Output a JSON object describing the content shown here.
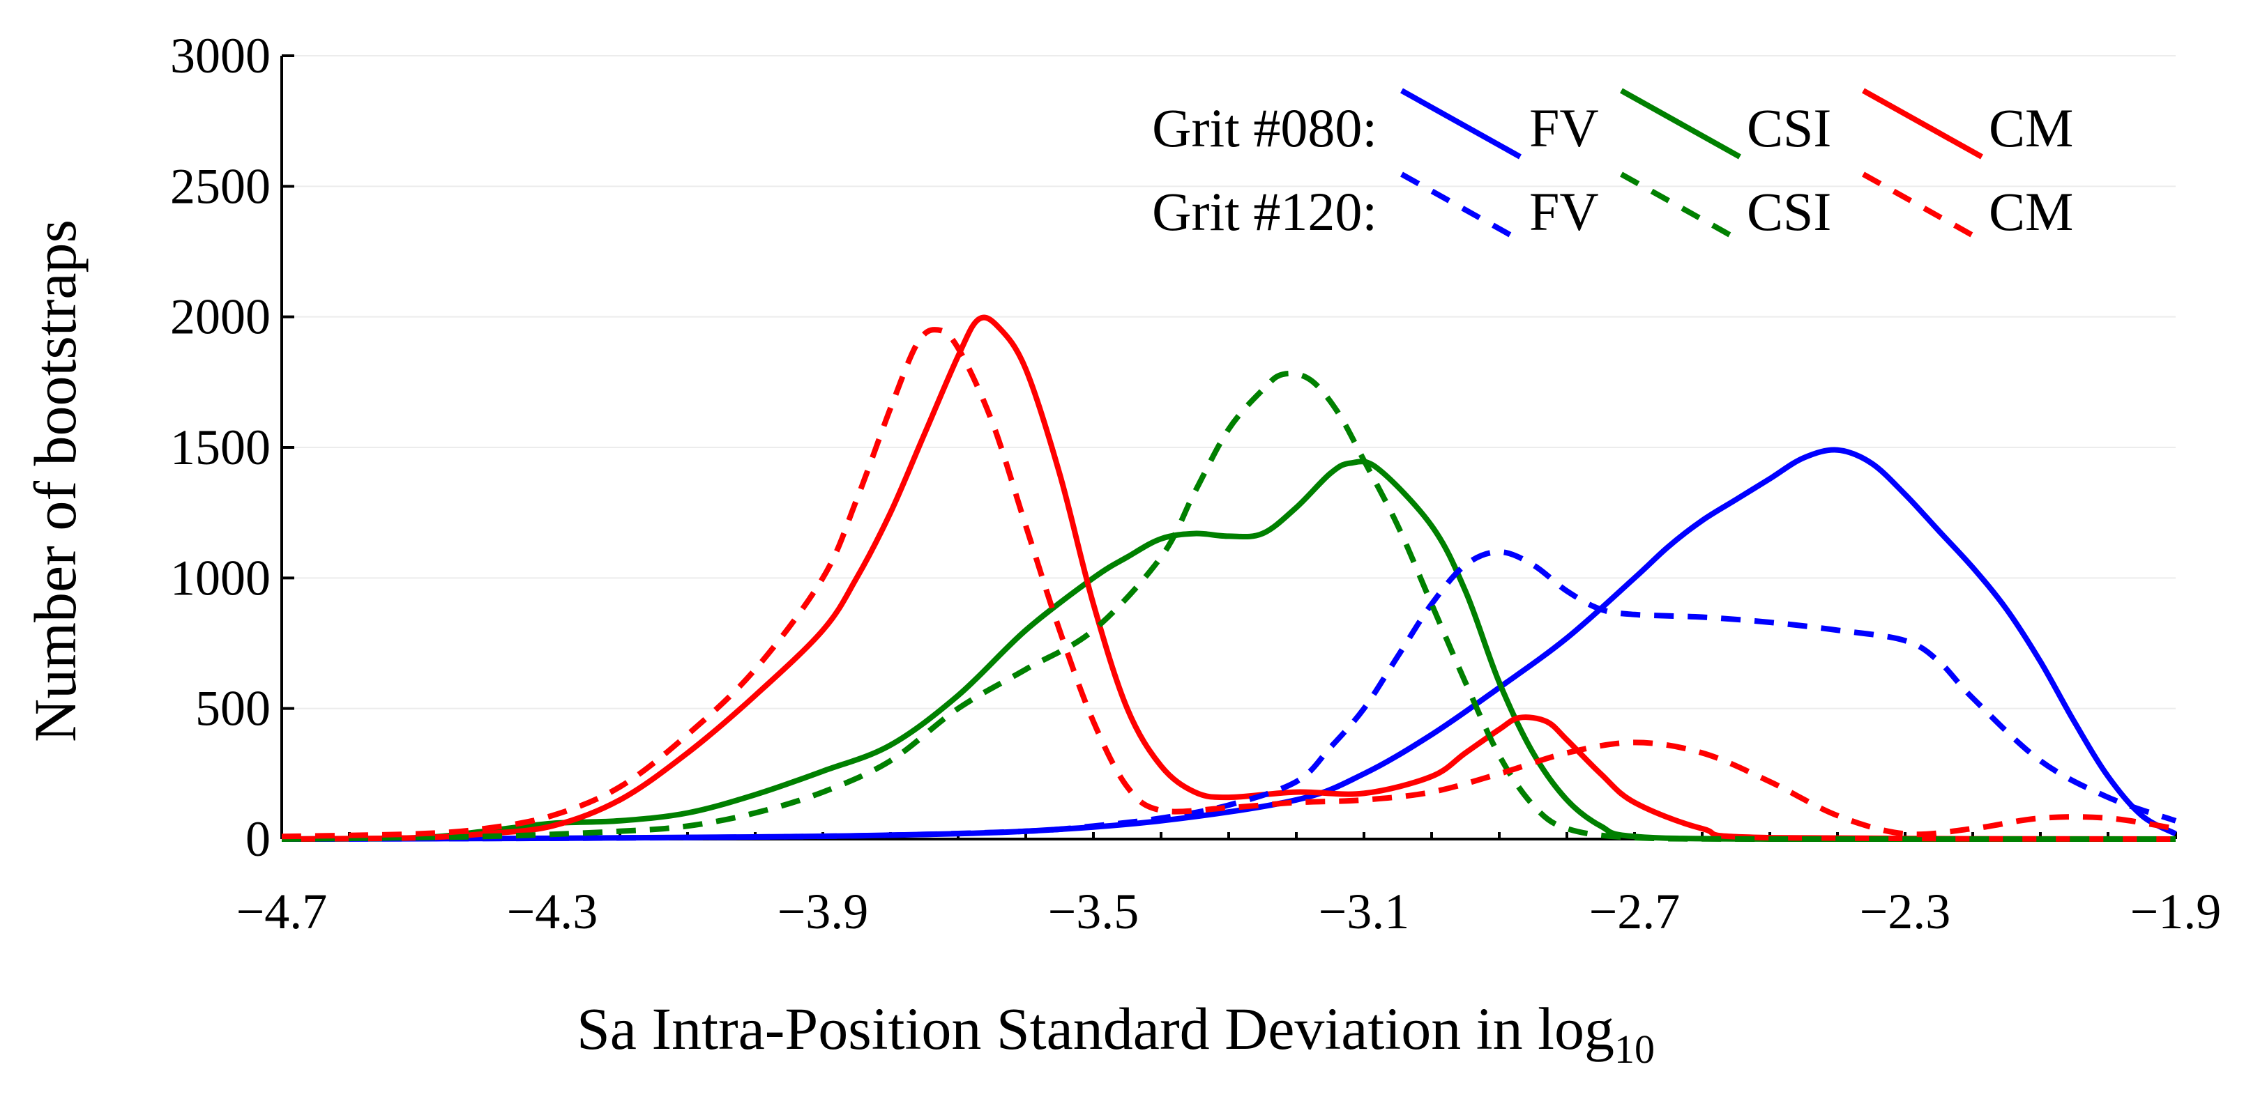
{
  "chart_data": {
    "type": "line",
    "title": "",
    "xlabel": "Sa Intra-Position Standard Deviation in log",
    "xlabel_subscript": "10",
    "ylabel": "Number of bootstraps",
    "xlim": [
      -4.7,
      -1.9
    ],
    "ylim": [
      0,
      3000
    ],
    "x_ticks": [
      -4.7,
      -4.3,
      -3.9,
      -3.5,
      -3.1,
      -2.7,
      -2.3,
      -1.9
    ],
    "x_tick_labels": [
      "−4.7",
      "−4.3",
      "−3.9",
      "−3.5",
      "−3.1",
      "−2.7",
      "−2.3",
      "−1.9"
    ],
    "y_ticks": [
      0,
      500,
      1000,
      1500,
      2000,
      2500,
      3000
    ],
    "y_tick_labels": [
      "0",
      "500",
      "1000",
      "1500",
      "2000",
      "2500",
      "3000"
    ],
    "grid": "horizontal",
    "legend_position": "top-right",
    "legend": {
      "row_labels": [
        "Grit #080:",
        "Grit #120:"
      ],
      "entries": [
        "FV",
        "CSI",
        "CM"
      ]
    },
    "series": [
      {
        "name": "FV",
        "grit": "#080",
        "color": "#0000ff",
        "dashed": false,
        "points": [
          [
            -4.7,
            0
          ],
          [
            -4.3,
            3
          ],
          [
            -4.0,
            8
          ],
          [
            -3.8,
            15
          ],
          [
            -3.6,
            30
          ],
          [
            -3.4,
            70
          ],
          [
            -3.2,
            150
          ],
          [
            -3.1,
            250
          ],
          [
            -3.0,
            400
          ],
          [
            -2.9,
            580
          ],
          [
            -2.8,
            770
          ],
          [
            -2.7,
            1000
          ],
          [
            -2.65,
            1120
          ],
          [
            -2.6,
            1220
          ],
          [
            -2.55,
            1300
          ],
          [
            -2.5,
            1380
          ],
          [
            -2.45,
            1460
          ],
          [
            -2.4,
            1490
          ],
          [
            -2.35,
            1440
          ],
          [
            -2.3,
            1320
          ],
          [
            -2.25,
            1180
          ],
          [
            -2.2,
            1040
          ],
          [
            -2.15,
            880
          ],
          [
            -2.1,
            680
          ],
          [
            -2.05,
            450
          ],
          [
            -2.0,
            240
          ],
          [
            -1.95,
            90
          ],
          [
            -1.9,
            20
          ]
        ]
      },
      {
        "name": "CSI",
        "grit": "#080",
        "color": "#008000",
        "dashed": false,
        "points": [
          [
            -4.7,
            0
          ],
          [
            -4.5,
            5
          ],
          [
            -4.4,
            30
          ],
          [
            -4.3,
            60
          ],
          [
            -4.2,
            70
          ],
          [
            -4.1,
            100
          ],
          [
            -4.0,
            170
          ],
          [
            -3.9,
            260
          ],
          [
            -3.8,
            360
          ],
          [
            -3.7,
            550
          ],
          [
            -3.6,
            800
          ],
          [
            -3.5,
            1000
          ],
          [
            -3.45,
            1080
          ],
          [
            -3.4,
            1150
          ],
          [
            -3.35,
            1170
          ],
          [
            -3.3,
            1160
          ],
          [
            -3.25,
            1170
          ],
          [
            -3.2,
            1270
          ],
          [
            -3.15,
            1400
          ],
          [
            -3.12,
            1440
          ],
          [
            -3.08,
            1420
          ],
          [
            -3.0,
            1200
          ],
          [
            -2.95,
            950
          ],
          [
            -2.9,
            600
          ],
          [
            -2.85,
            330
          ],
          [
            -2.8,
            150
          ],
          [
            -2.75,
            50
          ],
          [
            -2.7,
            10
          ],
          [
            -2.5,
            0
          ],
          [
            -1.9,
            0
          ]
        ]
      },
      {
        "name": "CM",
        "grit": "#080",
        "color": "#ff0000",
        "dashed": false,
        "points": [
          [
            -4.7,
            0
          ],
          [
            -4.5,
            5
          ],
          [
            -4.4,
            20
          ],
          [
            -4.3,
            50
          ],
          [
            -4.2,
            150
          ],
          [
            -4.1,
            330
          ],
          [
            -4.0,
            550
          ],
          [
            -3.9,
            800
          ],
          [
            -3.85,
            1000
          ],
          [
            -3.8,
            1250
          ],
          [
            -3.75,
            1550
          ],
          [
            -3.7,
            1850
          ],
          [
            -3.67,
            1990
          ],
          [
            -3.64,
            1960
          ],
          [
            -3.6,
            1800
          ],
          [
            -3.55,
            1400
          ],
          [
            -3.5,
            900
          ],
          [
            -3.45,
            500
          ],
          [
            -3.4,
            280
          ],
          [
            -3.35,
            180
          ],
          [
            -3.3,
            160
          ],
          [
            -3.2,
            180
          ],
          [
            -3.1,
            175
          ],
          [
            -3.0,
            240
          ],
          [
            -2.95,
            330
          ],
          [
            -2.9,
            420
          ],
          [
            -2.87,
            465
          ],
          [
            -2.83,
            450
          ],
          [
            -2.8,
            380
          ],
          [
            -2.75,
            250
          ],
          [
            -2.7,
            140
          ],
          [
            -2.6,
            40
          ],
          [
            -2.5,
            5
          ],
          [
            -1.9,
            0
          ]
        ]
      },
      {
        "name": "FV",
        "grit": "#120",
        "color": "#0000ff",
        "dashed": true,
        "points": [
          [
            -4.7,
            0
          ],
          [
            -4.3,
            3
          ],
          [
            -4.0,
            8
          ],
          [
            -3.8,
            15
          ],
          [
            -3.6,
            30
          ],
          [
            -3.5,
            50
          ],
          [
            -3.4,
            80
          ],
          [
            -3.3,
            130
          ],
          [
            -3.2,
            220
          ],
          [
            -3.15,
            350
          ],
          [
            -3.1,
            500
          ],
          [
            -3.05,
            700
          ],
          [
            -3.0,
            900
          ],
          [
            -2.95,
            1050
          ],
          [
            -2.9,
            1100
          ],
          [
            -2.85,
            1050
          ],
          [
            -2.8,
            950
          ],
          [
            -2.75,
            880
          ],
          [
            -2.7,
            860
          ],
          [
            -2.6,
            850
          ],
          [
            -2.5,
            830
          ],
          [
            -2.4,
            800
          ],
          [
            -2.3,
            760
          ],
          [
            -2.25,
            680
          ],
          [
            -2.2,
            540
          ],
          [
            -2.1,
            300
          ],
          [
            -2.0,
            160
          ],
          [
            -1.9,
            70
          ]
        ]
      },
      {
        "name": "CSI",
        "grit": "#120",
        "color": "#008000",
        "dashed": true,
        "points": [
          [
            -4.7,
            0
          ],
          [
            -4.4,
            10
          ],
          [
            -4.2,
            30
          ],
          [
            -4.1,
            50
          ],
          [
            -4.0,
            100
          ],
          [
            -3.9,
            180
          ],
          [
            -3.8,
            300
          ],
          [
            -3.7,
            500
          ],
          [
            -3.6,
            650
          ],
          [
            -3.5,
            800
          ],
          [
            -3.4,
            1080
          ],
          [
            -3.35,
            1330
          ],
          [
            -3.3,
            1570
          ],
          [
            -3.25,
            1720
          ],
          [
            -3.22,
            1780
          ],
          [
            -3.18,
            1760
          ],
          [
            -3.14,
            1640
          ],
          [
            -3.1,
            1450
          ],
          [
            -3.05,
            1200
          ],
          [
            -3.0,
            900
          ],
          [
            -2.95,
            600
          ],
          [
            -2.9,
            320
          ],
          [
            -2.85,
            130
          ],
          [
            -2.8,
            40
          ],
          [
            -2.7,
            5
          ],
          [
            -2.5,
            0
          ],
          [
            -1.9,
            0
          ]
        ]
      },
      {
        "name": "CM",
        "grit": "#120",
        "color": "#ff0000",
        "dashed": true,
        "points": [
          [
            -4.7,
            10
          ],
          [
            -4.5,
            20
          ],
          [
            -4.4,
            40
          ],
          [
            -4.3,
            90
          ],
          [
            -4.2,
            200
          ],
          [
            -4.1,
            400
          ],
          [
            -4.0,
            650
          ],
          [
            -3.9,
            1000
          ],
          [
            -3.85,
            1300
          ],
          [
            -3.8,
            1650
          ],
          [
            -3.76,
            1900
          ],
          [
            -3.73,
            1950
          ],
          [
            -3.7,
            1880
          ],
          [
            -3.65,
            1600
          ],
          [
            -3.6,
            1200
          ],
          [
            -3.55,
            800
          ],
          [
            -3.5,
            450
          ],
          [
            -3.45,
            200
          ],
          [
            -3.4,
            110
          ],
          [
            -3.3,
            120
          ],
          [
            -3.2,
            140
          ],
          [
            -3.1,
            150
          ],
          [
            -3.0,
            180
          ],
          [
            -2.9,
            250
          ],
          [
            -2.8,
            330
          ],
          [
            -2.7,
            370
          ],
          [
            -2.6,
            330
          ],
          [
            -2.5,
            220
          ],
          [
            -2.4,
            90
          ],
          [
            -2.3,
            20
          ],
          [
            -2.2,
            40
          ],
          [
            -2.1,
            80
          ],
          [
            -2.0,
            80
          ],
          [
            -1.9,
            40
          ]
        ]
      }
    ]
  }
}
